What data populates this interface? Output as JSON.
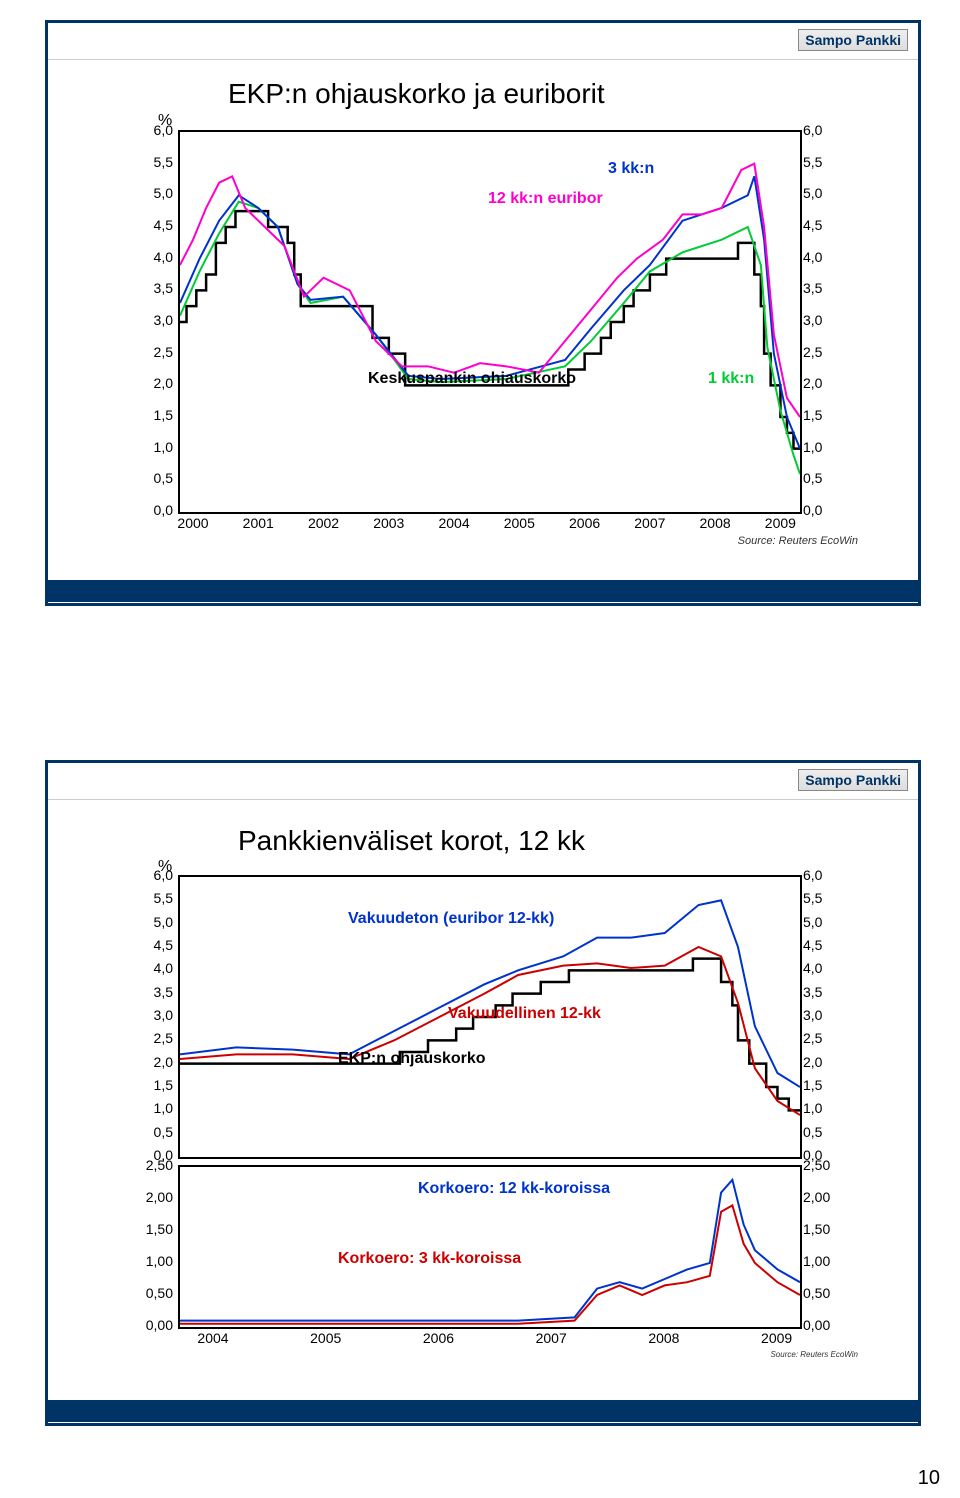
{
  "page_number": "10",
  "brand": "Sampo Pankki",
  "source_text": "Source: Reuters EcoWin",
  "chart1": {
    "title": "EKP:n ohjauskorko ja euriborit",
    "unit": "%",
    "type": "line",
    "xlim": [
      2000,
      2009.5
    ],
    "ylim": [
      0.0,
      6.0
    ],
    "ytick_step": 0.5,
    "yticks_left": [
      "6,0",
      "5,5",
      "5,0",
      "4,5",
      "4,0",
      "3,5",
      "3,0",
      "2,5",
      "2,0",
      "1,5",
      "1,0",
      "0,5",
      "0,0"
    ],
    "yticks_right": [
      "6,0",
      "5,5",
      "5,0",
      "4,5",
      "4,0",
      "3,5",
      "3,0",
      "2,5",
      "2,0",
      "1,5",
      "1,0",
      "0,5",
      "0,0"
    ],
    "xticks": [
      "2000",
      "2001",
      "2002",
      "2003",
      "2004",
      "2005",
      "2006",
      "2007",
      "2008",
      "2009"
    ],
    "labels": {
      "l1": {
        "text": "3 kk:n",
        "color": "#0033cc"
      },
      "l2": {
        "text": "12 kk:n euribor",
        "color": "#ff00cc"
      },
      "l3": {
        "text": "Keskuspankin ohjauskorko",
        "color": "#000000"
      },
      "l4": {
        "text": "1 kk:n",
        "color": "#00cc33"
      }
    },
    "colors": {
      "ecb": "#000000",
      "e1m": "#00cc33",
      "e3m": "#0033cc",
      "e12m": "#ff00cc"
    },
    "background_color": "#ffffff",
    "series": {
      "ecb_step": [
        [
          2000.0,
          3.0
        ],
        [
          2000.1,
          3.25
        ],
        [
          2000.25,
          3.5
        ],
        [
          2000.4,
          3.75
        ],
        [
          2000.55,
          4.25
        ],
        [
          2000.7,
          4.5
        ],
        [
          2000.85,
          4.75
        ],
        [
          2001.35,
          4.5
        ],
        [
          2001.65,
          4.25
        ],
        [
          2001.75,
          3.75
        ],
        [
          2001.85,
          3.25
        ],
        [
          2002.0,
          3.25
        ],
        [
          2002.95,
          2.75
        ],
        [
          2003.2,
          2.5
        ],
        [
          2003.45,
          2.0
        ],
        [
          2005.95,
          2.25
        ],
        [
          2006.2,
          2.5
        ],
        [
          2006.45,
          2.75
        ],
        [
          2006.6,
          3.0
        ],
        [
          2006.8,
          3.25
        ],
        [
          2006.95,
          3.5
        ],
        [
          2007.2,
          3.75
        ],
        [
          2007.45,
          4.0
        ],
        [
          2008.55,
          4.25
        ],
        [
          2008.8,
          3.75
        ],
        [
          2008.9,
          3.25
        ],
        [
          2008.95,
          2.5
        ],
        [
          2009.05,
          2.0
        ],
        [
          2009.2,
          1.5
        ],
        [
          2009.3,
          1.25
        ],
        [
          2009.4,
          1.0
        ],
        [
          2009.5,
          1.0
        ]
      ],
      "e1m": [
        [
          2000.0,
          3.1
        ],
        [
          2000.3,
          3.8
        ],
        [
          2000.6,
          4.4
        ],
        [
          2000.9,
          4.9
        ],
        [
          2001.2,
          4.8
        ],
        [
          2001.5,
          4.5
        ],
        [
          2001.8,
          3.6
        ],
        [
          2002.0,
          3.3
        ],
        [
          2002.5,
          3.4
        ],
        [
          2003.0,
          2.8
        ],
        [
          2003.5,
          2.1
        ],
        [
          2004.0,
          2.05
        ],
        [
          2005.0,
          2.1
        ],
        [
          2005.9,
          2.3
        ],
        [
          2006.3,
          2.7
        ],
        [
          2006.8,
          3.3
        ],
        [
          2007.2,
          3.8
        ],
        [
          2007.7,
          4.1
        ],
        [
          2008.3,
          4.3
        ],
        [
          2008.7,
          4.5
        ],
        [
          2008.9,
          3.9
        ],
        [
          2009.0,
          2.6
        ],
        [
          2009.2,
          1.6
        ],
        [
          2009.4,
          0.9
        ],
        [
          2009.5,
          0.6
        ]
      ],
      "e3m": [
        [
          2000.0,
          3.3
        ],
        [
          2000.3,
          4.0
        ],
        [
          2000.6,
          4.6
        ],
        [
          2000.9,
          5.0
        ],
        [
          2001.2,
          4.8
        ],
        [
          2001.5,
          4.5
        ],
        [
          2001.8,
          3.6
        ],
        [
          2002.0,
          3.35
        ],
        [
          2002.5,
          3.4
        ],
        [
          2003.0,
          2.8
        ],
        [
          2003.5,
          2.15
        ],
        [
          2004.0,
          2.1
        ],
        [
          2005.0,
          2.15
        ],
        [
          2005.9,
          2.4
        ],
        [
          2006.3,
          2.9
        ],
        [
          2006.8,
          3.5
        ],
        [
          2007.2,
          3.9
        ],
        [
          2007.7,
          4.6
        ],
        [
          2008.0,
          4.7
        ],
        [
          2008.3,
          4.8
        ],
        [
          2008.7,
          5.0
        ],
        [
          2008.8,
          5.3
        ],
        [
          2008.95,
          4.3
        ],
        [
          2009.1,
          2.5
        ],
        [
          2009.3,
          1.5
        ],
        [
          2009.5,
          1.0
        ]
      ],
      "e12m": [
        [
          2000.0,
          3.9
        ],
        [
          2000.2,
          4.3
        ],
        [
          2000.4,
          4.8
        ],
        [
          2000.6,
          5.2
        ],
        [
          2000.8,
          5.3
        ],
        [
          2001.0,
          4.8
        ],
        [
          2001.3,
          4.5
        ],
        [
          2001.6,
          4.2
        ],
        [
          2001.9,
          3.4
        ],
        [
          2002.2,
          3.7
        ],
        [
          2002.6,
          3.5
        ],
        [
          2003.0,
          2.7
        ],
        [
          2003.4,
          2.3
        ],
        [
          2003.8,
          2.3
        ],
        [
          2004.2,
          2.2
        ],
        [
          2004.6,
          2.35
        ],
        [
          2005.0,
          2.3
        ],
        [
          2005.5,
          2.2
        ],
        [
          2005.9,
          2.7
        ],
        [
          2006.3,
          3.2
        ],
        [
          2006.7,
          3.7
        ],
        [
          2007.0,
          4.0
        ],
        [
          2007.4,
          4.3
        ],
        [
          2007.7,
          4.7
        ],
        [
          2008.0,
          4.7
        ],
        [
          2008.3,
          4.8
        ],
        [
          2008.6,
          5.4
        ],
        [
          2008.8,
          5.5
        ],
        [
          2008.95,
          4.5
        ],
        [
          2009.1,
          2.8
        ],
        [
          2009.3,
          1.8
        ],
        [
          2009.5,
          1.5
        ]
      ]
    }
  },
  "chart2": {
    "title": "Pankkienväliset korot, 12 kk",
    "unit": "%",
    "type": "line-multi-panel",
    "panel_top": {
      "ylim": [
        0.0,
        6.0
      ],
      "yticks": [
        "6,0",
        "5,5",
        "5,0",
        "4,5",
        "4,0",
        "3,5",
        "3,0",
        "2,5",
        "2,0",
        "1,5",
        "1,0",
        "0,5",
        "0,0"
      ]
    },
    "panel_bottom": {
      "ylim": [
        0.0,
        2.5
      ],
      "yticks": [
        "2,50",
        "2,00",
        "1,50",
        "1,00",
        "0,50",
        "0,00"
      ]
    },
    "xlim": [
      2004,
      2009.5
    ],
    "xticks": [
      "2004",
      "2005",
      "2006",
      "2007",
      "2008",
      "2009"
    ],
    "labels": {
      "l1": {
        "text": "Vakuudeton (euribor 12-kk)",
        "color": "#0033cc"
      },
      "l2": {
        "text": "Vakuudellinen 12-kk",
        "color": "#cc0000"
      },
      "l3": {
        "text": "EKP:n ohjauskorko",
        "color": "#000000"
      },
      "l4": {
        "text": "Korkoero: 12 kk-koroissa",
        "color": "#0033cc"
      },
      "l5": {
        "text": "Korkoero: 3 kk-koroissa",
        "color": "#cc0000"
      }
    },
    "colors": {
      "unsecured": "#0033cc",
      "secured": "#cc0000",
      "ecb": "#000000",
      "spread12": "#0033cc",
      "spread3": "#cc0000"
    },
    "series_top": {
      "ecb_step": [
        [
          2004.0,
          2.0
        ],
        [
          2005.95,
          2.25
        ],
        [
          2006.2,
          2.5
        ],
        [
          2006.45,
          2.75
        ],
        [
          2006.6,
          3.0
        ],
        [
          2006.8,
          3.25
        ],
        [
          2006.95,
          3.5
        ],
        [
          2007.2,
          3.75
        ],
        [
          2007.45,
          4.0
        ],
        [
          2008.55,
          4.25
        ],
        [
          2008.8,
          3.75
        ],
        [
          2008.9,
          3.25
        ],
        [
          2008.95,
          2.5
        ],
        [
          2009.05,
          2.0
        ],
        [
          2009.2,
          1.5
        ],
        [
          2009.3,
          1.25
        ],
        [
          2009.4,
          1.0
        ],
        [
          2009.5,
          1.0
        ]
      ],
      "unsecured": [
        [
          2004.0,
          2.2
        ],
        [
          2004.5,
          2.35
        ],
        [
          2005.0,
          2.3
        ],
        [
          2005.5,
          2.2
        ],
        [
          2005.9,
          2.7
        ],
        [
          2006.3,
          3.2
        ],
        [
          2006.7,
          3.7
        ],
        [
          2007.0,
          4.0
        ],
        [
          2007.4,
          4.3
        ],
        [
          2007.7,
          4.7
        ],
        [
          2008.0,
          4.7
        ],
        [
          2008.3,
          4.8
        ],
        [
          2008.6,
          5.4
        ],
        [
          2008.8,
          5.5
        ],
        [
          2008.95,
          4.5
        ],
        [
          2009.1,
          2.8
        ],
        [
          2009.3,
          1.8
        ],
        [
          2009.5,
          1.5
        ]
      ],
      "secured": [
        [
          2004.0,
          2.1
        ],
        [
          2004.5,
          2.2
        ],
        [
          2005.0,
          2.2
        ],
        [
          2005.5,
          2.1
        ],
        [
          2005.9,
          2.5
        ],
        [
          2006.3,
          3.0
        ],
        [
          2006.7,
          3.5
        ],
        [
          2007.0,
          3.9
        ],
        [
          2007.4,
          4.1
        ],
        [
          2007.7,
          4.15
        ],
        [
          2008.0,
          4.05
        ],
        [
          2008.3,
          4.1
        ],
        [
          2008.6,
          4.5
        ],
        [
          2008.8,
          4.3
        ],
        [
          2008.95,
          3.3
        ],
        [
          2009.1,
          1.9
        ],
        [
          2009.3,
          1.2
        ],
        [
          2009.5,
          0.9
        ]
      ]
    },
    "series_bottom": {
      "spread12": [
        [
          2004.0,
          0.1
        ],
        [
          2005.0,
          0.1
        ],
        [
          2006.0,
          0.1
        ],
        [
          2007.0,
          0.1
        ],
        [
          2007.5,
          0.15
        ],
        [
          2007.7,
          0.6
        ],
        [
          2007.9,
          0.7
        ],
        [
          2008.1,
          0.6
        ],
        [
          2008.3,
          0.75
        ],
        [
          2008.5,
          0.9
        ],
        [
          2008.7,
          1.0
        ],
        [
          2008.8,
          2.1
        ],
        [
          2008.9,
          2.3
        ],
        [
          2009.0,
          1.6
        ],
        [
          2009.1,
          1.2
        ],
        [
          2009.3,
          0.9
        ],
        [
          2009.5,
          0.7
        ]
      ],
      "spread3": [
        [
          2004.0,
          0.05
        ],
        [
          2005.0,
          0.05
        ],
        [
          2006.0,
          0.05
        ],
        [
          2007.0,
          0.05
        ],
        [
          2007.5,
          0.1
        ],
        [
          2007.7,
          0.5
        ],
        [
          2007.9,
          0.65
        ],
        [
          2008.1,
          0.5
        ],
        [
          2008.3,
          0.65
        ],
        [
          2008.5,
          0.7
        ],
        [
          2008.7,
          0.8
        ],
        [
          2008.8,
          1.8
        ],
        [
          2008.9,
          1.9
        ],
        [
          2009.0,
          1.3
        ],
        [
          2009.1,
          1.0
        ],
        [
          2009.3,
          0.7
        ],
        [
          2009.5,
          0.5
        ]
      ]
    }
  }
}
